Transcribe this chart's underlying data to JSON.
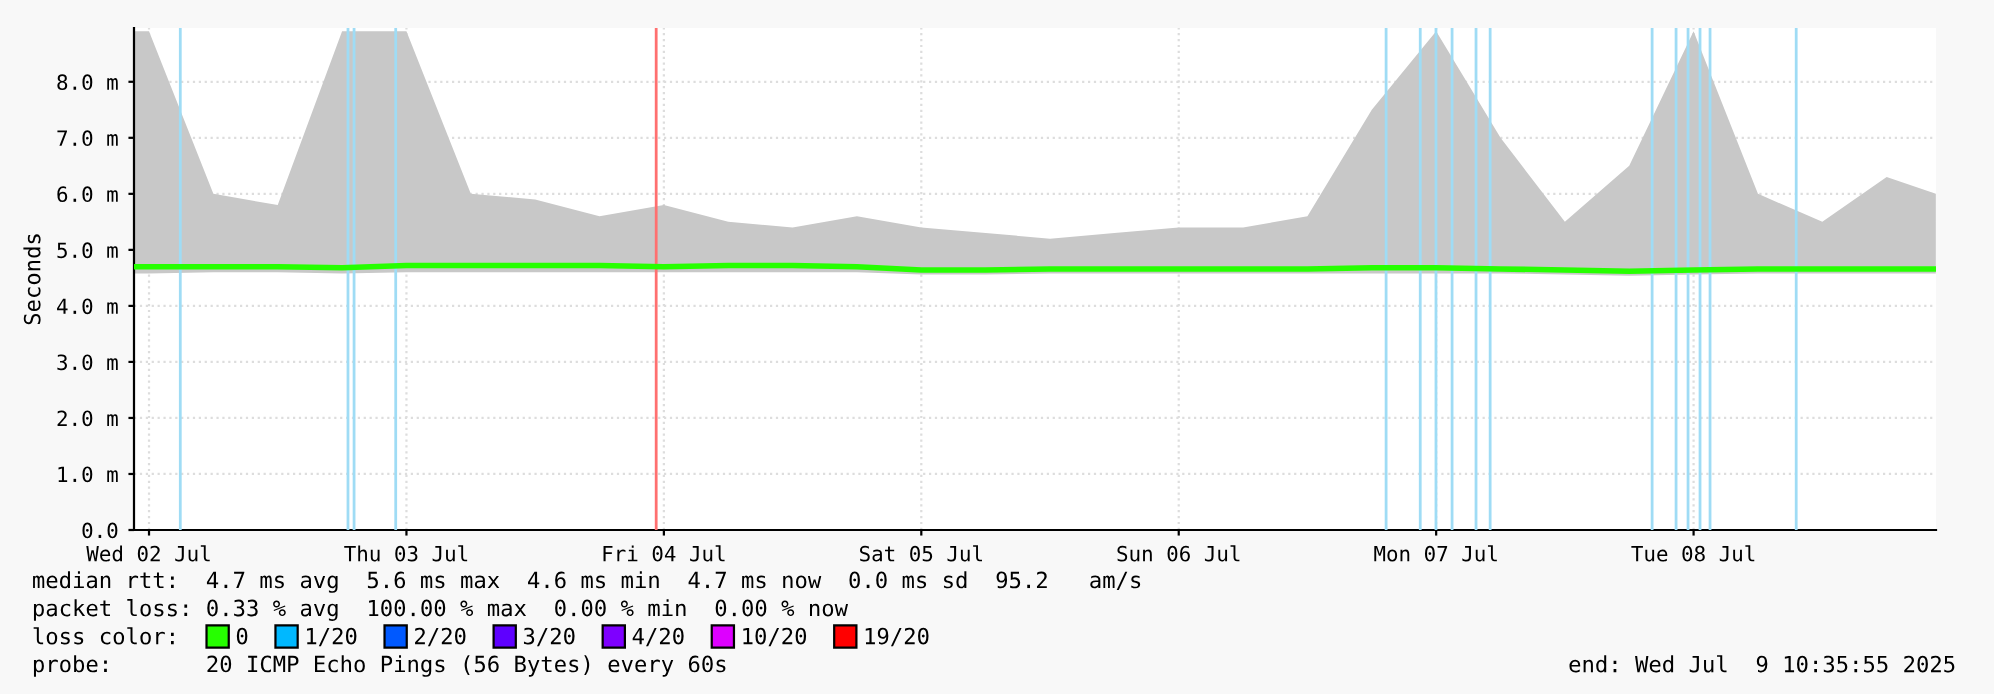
{
  "chart_data": {
    "type": "line",
    "ylabel": "Seconds",
    "legend_title": "loss color:",
    "x": [
      "2025-07-02T10:36",
      "2025-07-02T12:00",
      "2025-07-02T18:00",
      "2025-07-03T00:00",
      "2025-07-03T06:00",
      "2025-07-03T12:00",
      "2025-07-03T18:00",
      "2025-07-04T00:00",
      "2025-07-04T06:00",
      "2025-07-04T12:00",
      "2025-07-04T18:00",
      "2025-07-05T00:00",
      "2025-07-05T06:00",
      "2025-07-05T12:00",
      "2025-07-05T18:00",
      "2025-07-06T00:00",
      "2025-07-06T06:00",
      "2025-07-06T12:00",
      "2025-07-06T18:00",
      "2025-07-07T00:00",
      "2025-07-07T06:00",
      "2025-07-07T12:00",
      "2025-07-07T18:00",
      "2025-07-08T00:00",
      "2025-07-08T06:00",
      "2025-07-08T12:00",
      "2025-07-08T18:00",
      "2025-07-09T00:00",
      "2025-07-09T06:00",
      "2025-07-09T10:35"
    ],
    "series": [
      {
        "name": "0",
        "color": "#26ff00",
        "values": [
          4.7,
          4.7,
          4.7,
          4.7,
          4.68,
          4.72,
          4.72,
          4.72,
          4.72,
          4.7,
          4.72,
          4.72,
          4.7,
          4.64,
          4.64,
          4.66,
          4.66,
          4.66,
          4.66,
          4.66,
          4.68,
          4.68,
          4.66,
          4.64,
          4.62,
          4.64,
          4.66,
          4.66,
          4.66,
          4.66
        ],
        "lower": [
          4.58,
          4.58,
          4.6,
          4.6,
          4.58,
          4.6,
          4.6,
          4.6,
          4.6,
          4.6,
          4.6,
          4.6,
          4.6,
          4.56,
          4.56,
          4.58,
          4.58,
          4.58,
          4.58,
          4.58,
          4.58,
          4.58,
          4.58,
          4.56,
          4.54,
          4.56,
          4.58,
          4.58,
          4.58,
          4.58
        ],
        "upper": [
          8.9,
          8.9,
          6.0,
          5.8,
          8.9,
          8.9,
          6.0,
          5.9,
          5.6,
          5.8,
          5.5,
          5.4,
          5.6,
          5.4,
          5.3,
          5.2,
          5.3,
          5.4,
          5.4,
          5.6,
          7.5,
          8.9,
          7.0,
          5.5,
          6.5,
          8.9,
          6.0,
          5.5,
          6.3,
          6.0
        ]
      },
      {
        "name": "1/20",
        "color": "#00b8ff",
        "values": [
          null,
          null,
          null,
          null,
          null,
          null,
          null,
          null,
          null,
          null,
          null,
          null,
          null,
          null,
          null,
          null,
          null,
          null,
          null,
          null,
          null,
          null,
          null,
          null,
          null,
          null,
          null,
          null,
          null,
          null
        ]
      },
      {
        "name": "2/20",
        "color": "#0059ff",
        "values": [
          null,
          null,
          null,
          null,
          null,
          null,
          null,
          null,
          null,
          null,
          null,
          null,
          null,
          null,
          null,
          null,
          null,
          null,
          null,
          null,
          null,
          null,
          null,
          null,
          null,
          null,
          null,
          null,
          null,
          null
        ]
      },
      {
        "name": "3/20",
        "color": "#5e00ff",
        "values": [
          null,
          null,
          null,
          null,
          null,
          null,
          null,
          null,
          null,
          null,
          null,
          null,
          null,
          null,
          null,
          null,
          null,
          null,
          null,
          null,
          null,
          null,
          null,
          null,
          null,
          null,
          null,
          null,
          null,
          null
        ]
      },
      {
        "name": "4/20",
        "color": "#7e00ff",
        "values": [
          null,
          null,
          null,
          null,
          null,
          null,
          null,
          null,
          null,
          null,
          null,
          null,
          null,
          null,
          null,
          null,
          null,
          null,
          null,
          null,
          null,
          null,
          null,
          null,
          null,
          null,
          null,
          null,
          null,
          null
        ]
      },
      {
        "name": "10/20",
        "color": "#dd00ff",
        "values": [
          null,
          null,
          null,
          null,
          null,
          null,
          null,
          null,
          null,
          null,
          null,
          null,
          null,
          null,
          null,
          null,
          null,
          null,
          null,
          null,
          null,
          null,
          null,
          null,
          null,
          null,
          null,
          null,
          null,
          null
        ]
      },
      {
        "name": "19/20",
        "color": "#ff0000",
        "values": [
          null,
          null,
          null,
          null,
          null,
          null,
          null,
          null,
          null,
          null,
          null,
          null,
          null,
          null,
          null,
          null,
          null,
          null,
          null,
          null,
          null,
          null,
          null,
          null,
          null,
          null,
          null,
          null,
          null,
          null
        ]
      }
    ],
    "xlim": [
      "2025-07-02T10:36",
      "2025-07-09T10:36"
    ],
    "xticks": [
      {
        "value": "2025-07-02T12:00",
        "label": "Wed 02 Jul"
      },
      {
        "value": "2025-07-03T12:00",
        "label": "Thu 03 Jul"
      },
      {
        "value": "2025-07-04T12:00",
        "label": "Fri 04 Jul"
      },
      {
        "value": "2025-07-05T12:00",
        "label": "Sat 05 Jul"
      },
      {
        "value": "2025-07-06T12:00",
        "label": "Sun 06 Jul"
      },
      {
        "value": "2025-07-07T12:00",
        "label": "Mon 07 Jul"
      },
      {
        "value": "2025-07-08T12:00",
        "label": "Tue 08 Jul"
      }
    ],
    "ylim": [
      0,
      8.96
    ],
    "yticks": [
      {
        "value": 0,
        "label": "0.0"
      },
      {
        "value": 1,
        "label": "1.0 m"
      },
      {
        "value": 2,
        "label": "2.0 m"
      },
      {
        "value": 3,
        "label": "3.0 m"
      },
      {
        "value": 4,
        "label": "4.0 m"
      },
      {
        "value": 5,
        "label": "5.0 m"
      },
      {
        "value": 6,
        "label": "6.0 m"
      },
      {
        "value": 7,
        "label": "7.0 m"
      },
      {
        "value": 8,
        "label": "8.0 m"
      }
    ],
    "ref_lines": [
      {
        "axis": "x",
        "value": "2025-07-02T14:55",
        "label": null,
        "color": "#9fdcf5"
      },
      {
        "axis": "x",
        "value": "2025-07-03T06:33",
        "label": null,
        "color": "#9fdcf5"
      },
      {
        "axis": "x",
        "value": "2025-07-03T07:07",
        "label": null,
        "color": "#9fdcf5"
      },
      {
        "axis": "x",
        "value": "2025-07-03T11:00",
        "label": null,
        "color": "#9fdcf5"
      },
      {
        "axis": "x",
        "value": "2025-07-04T11:17",
        "label": null,
        "color": "#ff7070"
      },
      {
        "axis": "x",
        "value": "2025-07-07T07:20",
        "label": null,
        "color": "#9fdcf5"
      },
      {
        "axis": "x",
        "value": "2025-07-07T10:31",
        "label": null,
        "color": "#9fdcf5"
      },
      {
        "axis": "x",
        "value": "2025-07-07T11:59",
        "label": null,
        "color": "#9fdcf5"
      },
      {
        "axis": "x",
        "value": "2025-07-07T13:29",
        "label": null,
        "color": "#9fdcf5"
      },
      {
        "axis": "x",
        "value": "2025-07-07T15:43",
        "label": null,
        "color": "#9fdcf5"
      },
      {
        "axis": "x",
        "value": "2025-07-07T17:02",
        "label": null,
        "color": "#9fdcf5"
      },
      {
        "axis": "x",
        "value": "2025-07-08T08:08",
        "label": null,
        "color": "#9fdcf5"
      },
      {
        "axis": "x",
        "value": "2025-07-08T10:22",
        "label": null,
        "color": "#9fdcf5"
      },
      {
        "axis": "x",
        "value": "2025-07-08T11:29",
        "label": null,
        "color": "#9fdcf5"
      },
      {
        "axis": "x",
        "value": "2025-07-08T12:36",
        "label": null,
        "color": "#9fdcf5"
      },
      {
        "axis": "x",
        "value": "2025-07-08T13:32",
        "label": null,
        "color": "#9fdcf5"
      },
      {
        "axis": "x",
        "value": "2025-07-08T21:34",
        "label": null,
        "color": "#9fdcf5"
      }
    ],
    "annotations": [
      "median rtt:  4.7 ms avg  5.6 ms max  4.6 ms min  4.7 ms now  0.0 ms sd  95.2   am/s",
      "packet loss: 0.33 % avg  100.00 % max  0.00 % min  0.00 % now",
      "probe:       20 ICMP Echo Pings (56 Bytes) every 60s",
      "end: Wed Jul  9 10:35:55 2025"
    ],
    "grid": true,
    "legend": "bottom",
    "line_style": "solid",
    "marker": "none"
  }
}
